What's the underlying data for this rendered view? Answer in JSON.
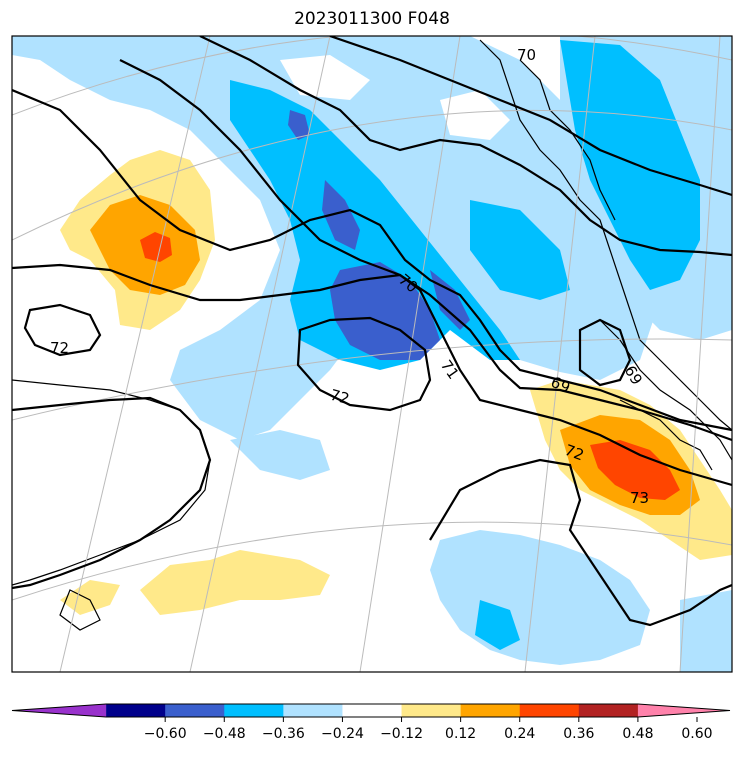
{
  "title": "2023011300 F048",
  "colorbar": {
    "colors": [
      "#9932cc",
      "#00008b",
      "#3a5fcd",
      "#00bfff",
      "#b0e2ff",
      "#ffffff",
      "#ffe98a",
      "#ffa500",
      "#ff4500",
      "#b22222",
      "#ff82ab"
    ],
    "ticks": [
      "−0.60",
      "−0.48",
      "−0.36",
      "−0.24",
      "−0.12",
      "0.12",
      "0.24",
      "0.36",
      "0.48",
      "0.60"
    ],
    "extend": "both"
  },
  "contour_labels": [
    "70",
    "70",
    "71",
    "72",
    "72",
    "72",
    "69",
    "69",
    "73"
  ],
  "colors": {
    "light_blue": "#b0e2ff",
    "deep_sky_blue": "#00bfff",
    "royal_blue": "#3a5fcd",
    "light_yellow": "#ffe98a",
    "orange": "#ffa500",
    "orange_red": "#ff4500",
    "contour": "#000000",
    "graticule": "#bbbbbb"
  }
}
